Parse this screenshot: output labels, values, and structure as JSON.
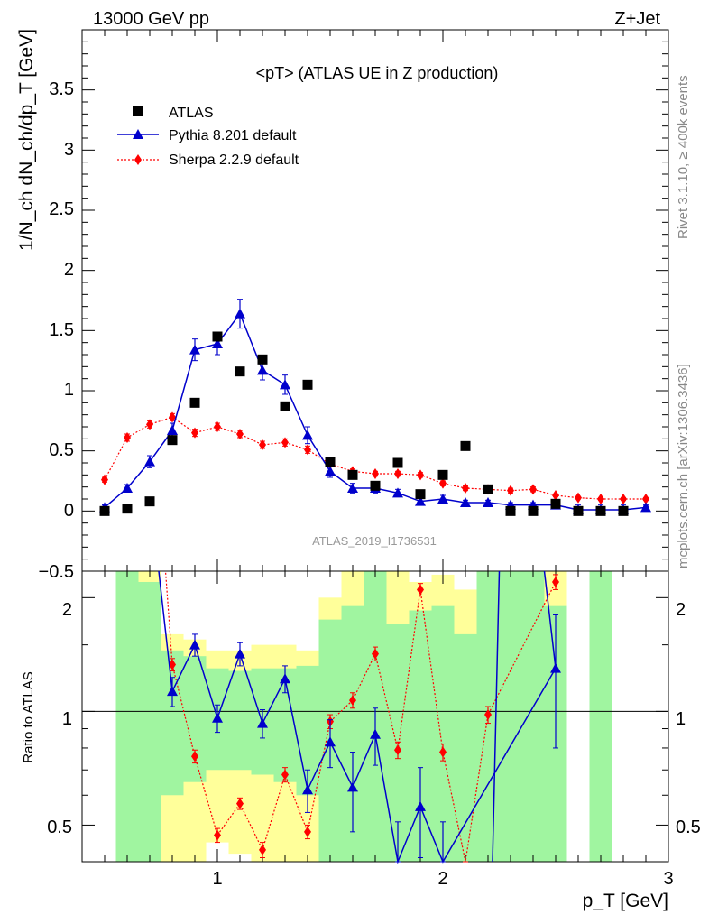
{
  "header": {
    "left": "13000 GeV pp",
    "right": "Z+Jet"
  },
  "main_panel": {
    "title": "<pT> (ATLAS UE in Z production)",
    "ylabel": "1/N_ch dN_ch/dp_T [GeV]",
    "watermark": "ATLAS_2019_I1736531",
    "yticks": [
      "−0.5",
      "0",
      "0.5",
      "1",
      "1.5",
      "2",
      "2.5",
      "3",
      "3.5"
    ]
  },
  "ratio_panel": {
    "ylabel": "Ratio to ATLAS",
    "yticks_left": [
      "0.5",
      "1",
      "2"
    ],
    "yticks_right": [
      "0.5",
      "1",
      "2"
    ]
  },
  "xaxis": {
    "label": "p_T [GeV]",
    "ticks": [
      "1",
      "2",
      "3"
    ]
  },
  "side_text": {
    "rivet": "Rivet 3.1.10, ≥ 400k events",
    "mcplots": "mcplots.cern.ch [arXiv:1306.3436]"
  },
  "legend": [
    {
      "label": "ATLAS"
    },
    {
      "label": "Pythia 8.201 default"
    },
    {
      "label": "Sherpa 2.2.9 default"
    }
  ],
  "colors": {
    "data": "#000000",
    "pythia": "#0000cc",
    "sherpa": "#ff0000",
    "band_green": "#a0f5a0",
    "band_yellow": "#ffff9a"
  },
  "chart_data": {
    "type": "scatter",
    "xlabel": "p_T [GeV]",
    "ylabel": "1/N_ch dN_ch/dp_T [GeV]",
    "xlim": [
      0.4,
      3.0
    ],
    "ylim": [
      -0.5,
      4.0
    ],
    "ratio_ylim": [
      0.4,
      2.35
    ],
    "ratio_log": true,
    "series": [
      {
        "name": "ATLAS",
        "x": [
          0.5,
          0.6,
          0.7,
          0.8,
          0.9,
          1.0,
          1.1,
          1.2,
          1.3,
          1.4,
          1.5,
          1.6,
          1.7,
          1.8,
          1.9,
          2.0,
          2.1,
          2.2,
          2.3,
          2.4,
          2.5,
          2.6,
          2.7,
          2.8
        ],
        "y": [
          0.0,
          0.02,
          0.08,
          0.59,
          0.9,
          1.45,
          1.16,
          1.26,
          0.87,
          1.05,
          0.41,
          0.3,
          0.21,
          0.4,
          0.14,
          0.3,
          0.54,
          0.18,
          0.0,
          0.0,
          0.06,
          0.0,
          0.0,
          0.0
        ]
      },
      {
        "name": "Pythia 8.201 default",
        "x": [
          0.5,
          0.6,
          0.7,
          0.8,
          0.9,
          1.0,
          1.1,
          1.2,
          1.3,
          1.4,
          1.5,
          1.6,
          1.7,
          1.8,
          1.9,
          2.0,
          2.1,
          2.2,
          2.3,
          2.4,
          2.5,
          2.6,
          2.7,
          2.8,
          2.9
        ],
        "y": [
          0.03,
          0.19,
          0.41,
          0.67,
          1.34,
          1.39,
          1.64,
          1.17,
          1.05,
          0.63,
          0.33,
          0.19,
          0.19,
          0.15,
          0.08,
          0.1,
          0.07,
          0.07,
          0.05,
          0.05,
          0.05,
          0.01,
          0.01,
          0.01,
          0.03
        ],
        "yerr": [
          0.02,
          0.03,
          0.05,
          0.06,
          0.09,
          0.09,
          0.12,
          0.08,
          0.08,
          0.07,
          0.05,
          0.04,
          0.04,
          0.03,
          0.03,
          0.03,
          0.02,
          0.02,
          0.02,
          0.02,
          0.02,
          0.01,
          0.01,
          0.01,
          0.01
        ]
      },
      {
        "name": "Sherpa 2.2.9 default",
        "x": [
          0.5,
          0.6,
          0.7,
          0.8,
          0.9,
          1.0,
          1.1,
          1.2,
          1.3,
          1.4,
          1.5,
          1.6,
          1.7,
          1.8,
          1.9,
          2.0,
          2.1,
          2.2,
          2.3,
          2.4,
          2.5,
          2.6,
          2.7,
          2.8,
          2.9
        ],
        "y": [
          0.26,
          0.61,
          0.72,
          0.78,
          0.65,
          0.7,
          0.64,
          0.55,
          0.57,
          0.51,
          0.39,
          0.33,
          0.31,
          0.31,
          0.3,
          0.23,
          0.19,
          0.18,
          0.17,
          0.18,
          0.13,
          0.11,
          0.1,
          0.1,
          0.1
        ],
        "yerr": [
          0.02,
          0.03,
          0.03,
          0.03,
          0.03,
          0.03,
          0.03,
          0.03,
          0.03,
          0.03,
          0.02,
          0.02,
          0.02,
          0.02,
          0.02,
          0.02,
          0.02,
          0.02,
          0.02,
          0.02,
          0.01,
          0.01,
          0.01,
          0.01,
          0.01
        ]
      }
    ],
    "ratio": {
      "pythia": {
        "x": [
          0.8,
          0.9,
          1.0,
          1.1,
          1.2,
          1.3,
          1.4,
          1.5,
          1.6,
          1.7,
          1.8,
          1.9,
          2.0,
          2.5
        ],
        "y": [
          1.13,
          1.5,
          0.96,
          1.42,
          0.93,
          1.22,
          0.62,
          0.83,
          0.63,
          0.87,
          0.36,
          0.56,
          0.36,
          1.3
        ],
        "yerr": [
          0.1,
          0.1,
          0.08,
          0.1,
          0.08,
          0.1,
          0.08,
          0.12,
          0.15,
          0.15,
          0.15,
          0.15,
          0.15,
          0.5
        ]
      },
      "sherpa": {
        "x": [
          0.8,
          0.9,
          1.0,
          1.1,
          1.2,
          1.3,
          1.4,
          1.5,
          1.6,
          1.7,
          1.8,
          1.9,
          2.0,
          2.1,
          2.2,
          2.5
        ],
        "y": [
          1.33,
          0.76,
          0.47,
          0.57,
          0.43,
          0.68,
          0.48,
          0.94,
          1.07,
          1.42,
          0.79,
          2.1,
          0.78,
          0.36,
          0.98,
          2.2
        ],
        "yerr": [
          0.05,
          0.03,
          0.02,
          0.02,
          0.02,
          0.03,
          0.02,
          0.04,
          0.05,
          0.06,
          0.04,
          0.08,
          0.04,
          0.03,
          0.05,
          0.1
        ]
      }
    }
  }
}
